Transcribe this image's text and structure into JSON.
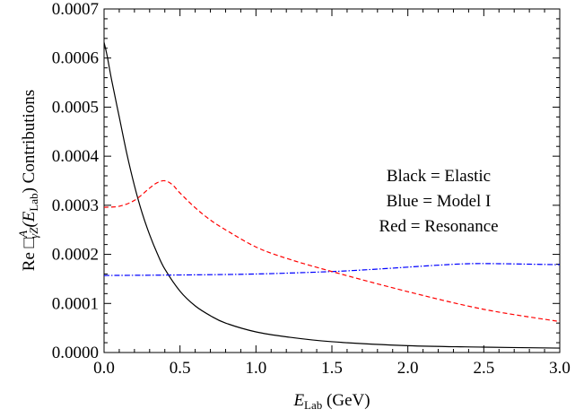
{
  "chart_data": {
    "type": "line",
    "xlabel": {
      "main": "E",
      "sub": "Lab",
      "rest": " (GeV)"
    },
    "ylabel": {
      "pre": "Re ",
      "box": "□",
      "sup": "A",
      "sub": "γZ",
      "mid": "(E",
      "sub2": "Lab",
      "post": ") Contributions"
    },
    "xlim": [
      0.0,
      3.0
    ],
    "ylim": [
      0.0,
      0.0007
    ],
    "xticks": [
      "0.0",
      "0.5",
      "1.0",
      "1.5",
      "2.0",
      "2.5",
      "3.0"
    ],
    "yticks": [
      "0.0000",
      "0.0001",
      "0.0002",
      "0.0003",
      "0.0004",
      "0.0005",
      "0.0006",
      "0.0007"
    ],
    "annotations": [
      "Black = Elastic",
      "Blue = Model I",
      "Red = Resonance"
    ],
    "grid": false,
    "series": [
      {
        "color": "#000000",
        "dash": "none",
        "x": [
          0.0,
          0.02,
          0.05,
          0.1,
          0.15,
          0.2,
          0.25,
          0.3,
          0.35,
          0.4,
          0.5,
          0.6,
          0.7,
          0.8,
          1.0,
          1.2,
          1.5,
          2.0,
          2.5,
          3.0
        ],
        "y": [
          0.000632,
          0.000605,
          0.000555,
          0.00048,
          0.000405,
          0.00034,
          0.000285,
          0.00024,
          0.000202,
          0.00017,
          0.000125,
          9.5e-05,
          7.5e-05,
          6e-05,
          4.2e-05,
          3.2e-05,
          2.2e-05,
          1.4e-05,
          1.1e-05,
          9e-06
        ]
      },
      {
        "color": "#0000ff",
        "dash": "6,2,1.5,2",
        "x": [
          0.0,
          0.5,
          1.0,
          1.5,
          1.8,
          2.0,
          2.2,
          2.4,
          2.6,
          2.8,
          3.0
        ],
        "y": [
          0.000157,
          0.000158,
          0.00016,
          0.000165,
          0.00017,
          0.000174,
          0.000178,
          0.000181,
          0.000181,
          0.00018,
          0.000179
        ]
      },
      {
        "color": "#ff0000",
        "dash": "5,3",
        "x": [
          0.0,
          0.1,
          0.2,
          0.3,
          0.35,
          0.4,
          0.45,
          0.5,
          0.6,
          0.7,
          0.8,
          1.0,
          1.2,
          1.5,
          2.0,
          2.5,
          3.0
        ],
        "y": [
          0.000296,
          0.000298,
          0.00031,
          0.000335,
          0.000346,
          0.00035,
          0.000342,
          0.000325,
          0.000295,
          0.00027,
          0.00025,
          0.000215,
          0.000192,
          0.000165,
          0.000124,
          8.8e-05,
          6.3e-05
        ]
      }
    ]
  }
}
